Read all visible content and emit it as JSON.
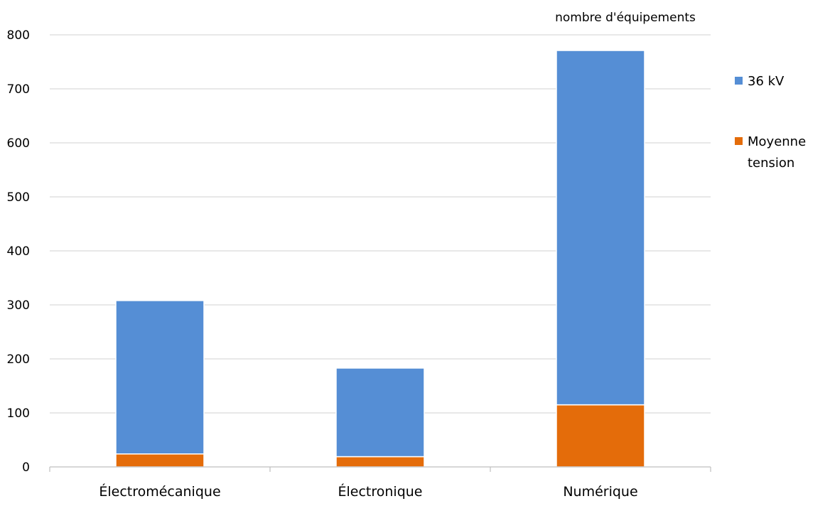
{
  "chart_data": {
    "type": "bar",
    "stacked": true,
    "title": "",
    "xlabel": "",
    "ylabel": "nombre d'équipements",
    "ylim": [
      0,
      800
    ],
    "yticks": [
      0,
      100,
      200,
      300,
      400,
      500,
      600,
      700,
      800
    ],
    "grid": true,
    "legend_position": "right",
    "categories": [
      "Électromécanique",
      "Électronique",
      "Numérique"
    ],
    "series": [
      {
        "name": "36 kV",
        "color": "#558ED5",
        "values": [
          284,
          164,
          656
        ]
      },
      {
        "name": "Moyenne tension",
        "color": "#E46C0A",
        "values": [
          24,
          19,
          115
        ]
      }
    ]
  }
}
